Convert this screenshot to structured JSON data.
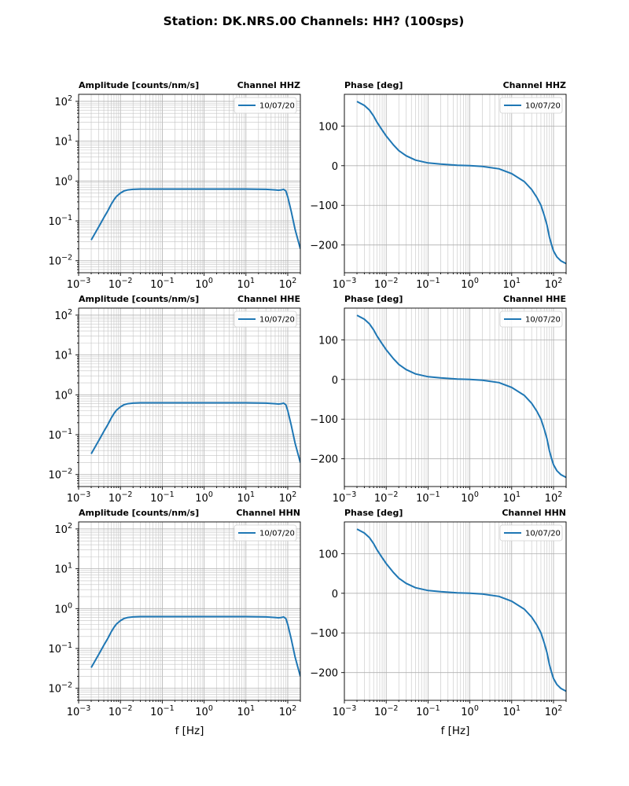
{
  "figure_title": "Station: DK.NRS.00 Channels: HH? (100sps)",
  "colors": {
    "series": "#1f77b4",
    "grid": "#b0b0b0"
  },
  "chart_data": [
    {
      "type": "line",
      "panel": "amplitude",
      "channel_label": "Channel HHZ",
      "ylabel": "Amplitude [counts/nm/s]",
      "xlabel": "",
      "xscale": "log",
      "yscale": "log",
      "xlim": [
        0.001,
        200
      ],
      "ylim": [
        0.005,
        150
      ],
      "legend_placement": "top-right",
      "series": [
        {
          "name": "10/07/20",
          "curve": "amplitude"
        }
      ]
    },
    {
      "type": "line",
      "panel": "phase",
      "channel_label": "Channel HHZ",
      "ylabel": "Phase [deg]",
      "xlabel": "",
      "xscale": "log",
      "yscale": "linear",
      "xlim": [
        0.001,
        200
      ],
      "ylim": [
        -270,
        180
      ],
      "legend_placement": "top-right",
      "series": [
        {
          "name": "10/07/20",
          "curve": "phase"
        }
      ]
    },
    {
      "type": "line",
      "panel": "amplitude",
      "channel_label": "Channel HHE",
      "ylabel": "Amplitude [counts/nm/s]",
      "xlabel": "",
      "xscale": "log",
      "yscale": "log",
      "xlim": [
        0.001,
        200
      ],
      "ylim": [
        0.005,
        150
      ],
      "legend_placement": "top-right",
      "series": [
        {
          "name": "10/07/20",
          "curve": "amplitude"
        }
      ]
    },
    {
      "type": "line",
      "panel": "phase",
      "channel_label": "Channel HHE",
      "ylabel": "Phase [deg]",
      "xlabel": "",
      "xscale": "log",
      "yscale": "linear",
      "xlim": [
        0.001,
        200
      ],
      "ylim": [
        -270,
        180
      ],
      "legend_placement": "top-right",
      "series": [
        {
          "name": "10/07/20",
          "curve": "phase"
        }
      ]
    },
    {
      "type": "line",
      "panel": "amplitude",
      "channel_label": "Channel HHN",
      "ylabel": "Amplitude [counts/nm/s]",
      "xlabel": "f [Hz]",
      "xscale": "log",
      "yscale": "log",
      "xlim": [
        0.001,
        200
      ],
      "ylim": [
        0.005,
        150
      ],
      "legend_placement": "top-right",
      "series": [
        {
          "name": "10/07/20",
          "curve": "amplitude"
        }
      ]
    },
    {
      "type": "line",
      "panel": "phase",
      "channel_label": "Channel HHN",
      "ylabel": "Phase [deg]",
      "xlabel": "f [Hz]",
      "xscale": "log",
      "yscale": "linear",
      "xlim": [
        0.001,
        200
      ],
      "ylim": [
        -270,
        180
      ],
      "legend_placement": "top-right",
      "series": [
        {
          "name": "10/07/20",
          "curve": "phase"
        }
      ]
    }
  ],
  "curves": {
    "amplitude": {
      "x": [
        0.002,
        0.003,
        0.004,
        0.005,
        0.006,
        0.007,
        0.008,
        0.01,
        0.012,
        0.015,
        0.02,
        0.03,
        0.05,
        0.1,
        1,
        10,
        30,
        50,
        60,
        70,
        80,
        90,
        100,
        120,
        150,
        200
      ],
      "y": [
        0.033,
        0.07,
        0.12,
        0.18,
        0.26,
        0.34,
        0.41,
        0.5,
        0.56,
        0.6,
        0.62,
        0.63,
        0.63,
        0.63,
        0.63,
        0.63,
        0.62,
        0.6,
        0.59,
        0.6,
        0.62,
        0.56,
        0.4,
        0.18,
        0.06,
        0.02
      ]
    },
    "phase": {
      "x": [
        0.002,
        0.003,
        0.004,
        0.005,
        0.006,
        0.008,
        0.01,
        0.015,
        0.02,
        0.03,
        0.05,
        0.1,
        0.2,
        0.5,
        1,
        2,
        5,
        10,
        20,
        30,
        40,
        50,
        60,
        70,
        80,
        90,
        100,
        120,
        150,
        200
      ],
      "y": [
        162,
        152,
        140,
        125,
        110,
        90,
        75,
        52,
        38,
        25,
        14,
        7,
        4,
        1,
        0,
        -2,
        -8,
        -20,
        -40,
        -60,
        -80,
        -100,
        -125,
        -150,
        -180,
        -200,
        -215,
        -230,
        -240,
        -247
      ]
    }
  },
  "axes": {
    "x_ticks": [
      {
        "value": 0.001,
        "base": "10",
        "exp": "−3"
      },
      {
        "value": 0.01,
        "base": "10",
        "exp": "−2"
      },
      {
        "value": 0.1,
        "base": "10",
        "exp": "−1"
      },
      {
        "value": 1,
        "base": "10",
        "exp": "0"
      },
      {
        "value": 10,
        "base": "10",
        "exp": "1"
      },
      {
        "value": 100,
        "base": "10",
        "exp": "2"
      }
    ],
    "amp_y_ticks": [
      {
        "value": 0.01,
        "base": "10",
        "exp": "−2"
      },
      {
        "value": 0.1,
        "base": "10",
        "exp": "−1"
      },
      {
        "value": 1,
        "base": "10",
        "exp": "0"
      },
      {
        "value": 10,
        "base": "10",
        "exp": "1"
      },
      {
        "value": 100,
        "base": "10",
        "exp": "2"
      }
    ],
    "phase_y_ticks": [
      {
        "value": 100,
        "label": "100"
      },
      {
        "value": 0,
        "label": "0"
      },
      {
        "value": -100,
        "label": "−100"
      },
      {
        "value": -200,
        "label": "−200"
      }
    ]
  }
}
